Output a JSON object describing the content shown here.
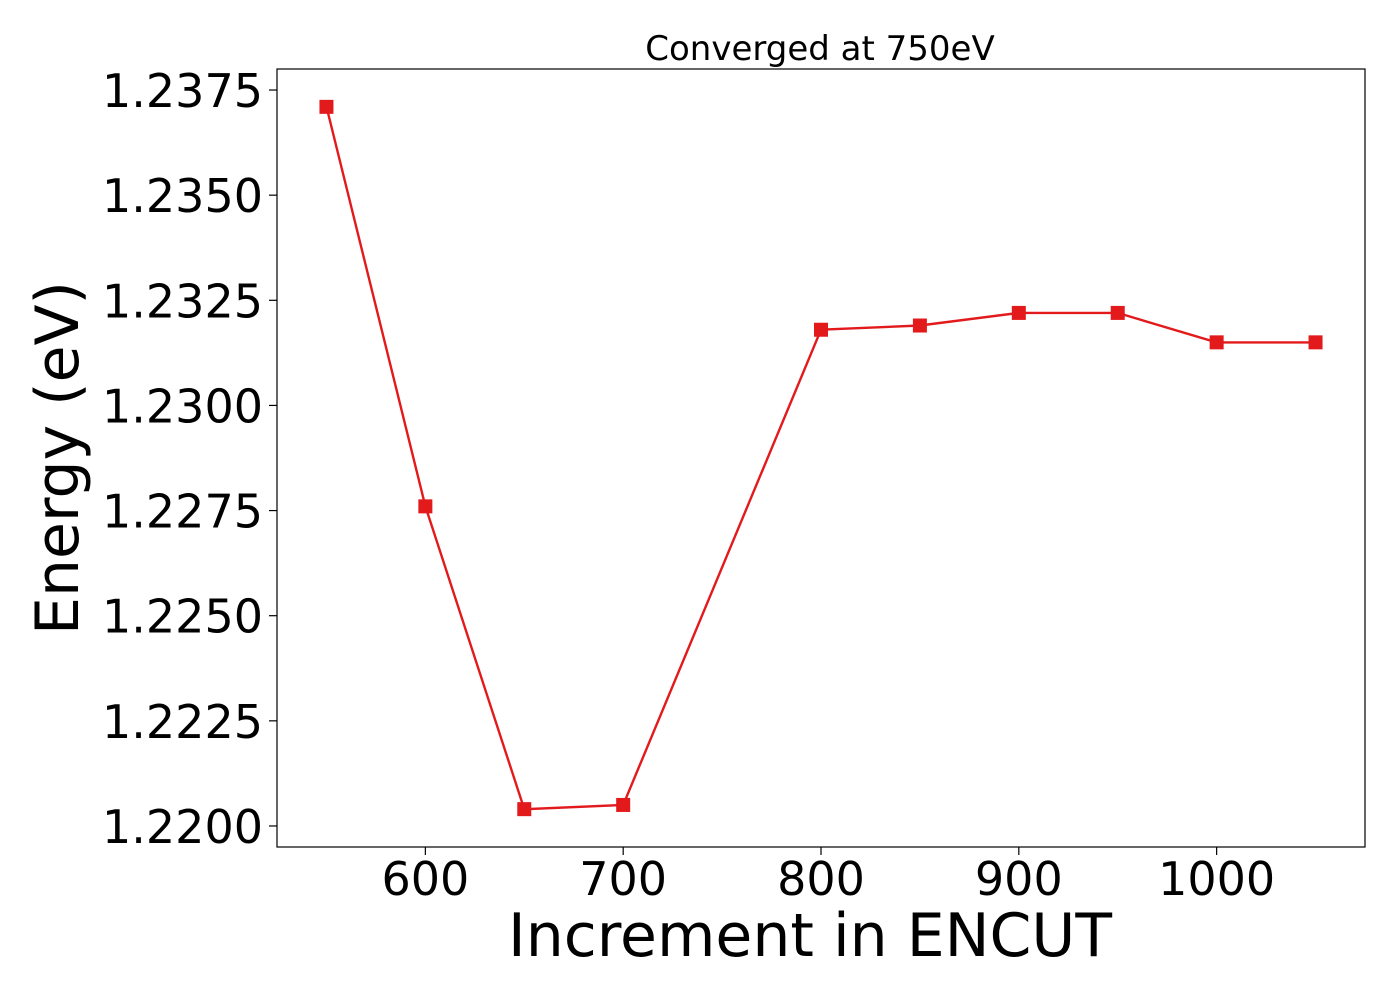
{
  "chart_data": {
    "type": "line",
    "title": "Converged at 750eV",
    "xlabel": "Increment in ENCUT",
    "ylabel": "Energy (eV)",
    "xlim": [
      525,
      1075
    ],
    "ylim": [
      1.2195,
      1.238
    ],
    "xticks": [
      600,
      700,
      800,
      900,
      1000
    ],
    "yticks": [
      "1.2200",
      "1.2225",
      "1.2250",
      "1.2275",
      "1.2300",
      "1.2325",
      "1.2350",
      "1.2375"
    ],
    "grid": false,
    "series": [
      {
        "color": "#e31a1c",
        "marker": "square",
        "x": [
          550,
          600,
          650,
          700,
          800,
          850,
          900,
          950,
          1000,
          1050
        ],
        "y": [
          1.2371,
          1.2276,
          1.2204,
          1.2205,
          1.2318,
          1.2319,
          1.2322,
          1.2322,
          1.2315,
          1.2315
        ]
      }
    ]
  }
}
